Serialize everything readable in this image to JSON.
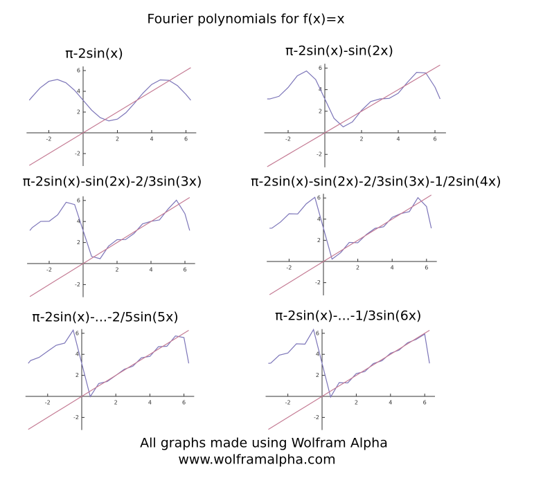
{
  "title": "Fourier polynomials for f(x)=x",
  "footer": [
    "All graphs made using Wolfram Alpha",
    "www.wolframalpha.com"
  ],
  "chart_data": [
    {
      "type": "line",
      "title": "π-2sin(x)",
      "x": [
        -3.14,
        -3,
        -2.5,
        -2,
        -1.5,
        -1,
        -0.5,
        0,
        0.5,
        1,
        1.5,
        2,
        2.5,
        3,
        3.5,
        4,
        4.5,
        5,
        5.5,
        6,
        6.28
      ],
      "series": [
        {
          "color": "#7b74b8",
          "values": [
            3.14,
            3.42,
            4.34,
            4.96,
            5.14,
            4.82,
            4.1,
            3.14,
            2.18,
            1.46,
            1.15,
            1.32,
            1.94,
            2.86,
            3.84,
            4.66,
            5.1,
            5.06,
            4.55,
            3.7,
            3.14
          ]
        },
        {
          "color": "#c47a93",
          "values": [
            -3.14,
            -3,
            -2.5,
            -2,
            -1.5,
            -1,
            -0.5,
            0,
            0.5,
            1,
            1.5,
            2,
            2.5,
            3,
            3.5,
            4,
            4.5,
            5,
            5.5,
            6,
            6.28
          ]
        }
      ],
      "xlim": [
        -3.3,
        6.6
      ],
      "ylim": [
        -3.2,
        6.4
      ],
      "xticks": [
        -2,
        2,
        4,
        6
      ],
      "yticks": [
        -2,
        2,
        4,
        6
      ]
    },
    {
      "type": "line",
      "title": "π-2sin(x)-sin(2x)",
      "x": [
        -3.14,
        -3,
        -2.5,
        -2,
        -1.5,
        -1,
        -0.5,
        0,
        0.5,
        1,
        1.5,
        2,
        2.5,
        3,
        3.5,
        4,
        4.5,
        5,
        5.5,
        6,
        6.28
      ],
      "series": [
        {
          "color": "#7b74b8",
          "values": [
            3.14,
            3.14,
            3.38,
            4.2,
            5.28,
            5.73,
            4.94,
            3.14,
            1.34,
            0.55,
            1.01,
            2.08,
            2.9,
            3.14,
            3.19,
            3.67,
            4.68,
            5.6,
            5.55,
            4.24,
            3.14
          ]
        },
        {
          "color": "#c47a93",
          "values": [
            -3.14,
            -3,
            -2.5,
            -2,
            -1.5,
            -1,
            -0.5,
            0,
            0.5,
            1,
            1.5,
            2,
            2.5,
            3,
            3.5,
            4,
            4.5,
            5,
            5.5,
            6,
            6.28
          ]
        }
      ],
      "xlim": [
        -3.3,
        6.6
      ],
      "ylim": [
        -3.2,
        6.4
      ],
      "xticks": [
        -2,
        2,
        4,
        6
      ],
      "yticks": [
        -2,
        2,
        4,
        6
      ]
    },
    {
      "type": "line",
      "title": "π-2sin(x)-sin(2x)-2/3sin(3x)",
      "x": [
        -3.14,
        -3,
        -2.5,
        -2,
        -1.5,
        -1,
        -0.5,
        0,
        0.5,
        1,
        1.5,
        2,
        2.5,
        3,
        3.5,
        4,
        4.5,
        5,
        5.5,
        6,
        6.28
      ],
      "series": [
        {
          "color": "#7b74b8",
          "values": [
            3.14,
            3.42,
            4.01,
            4.02,
            4.63,
            5.83,
            5.61,
            3.14,
            0.68,
            0.46,
            1.66,
            2.27,
            2.28,
            2.86,
            3.77,
            4.02,
            4.15,
            5.17,
            6.03,
            4.74,
            3.14
          ]
        },
        {
          "color": "#c47a93",
          "values": [
            -3.14,
            -3,
            -2.5,
            -2,
            -1.5,
            -1,
            -0.5,
            0,
            0.5,
            1,
            1.5,
            2,
            2.5,
            3,
            3.5,
            4,
            4.5,
            5,
            5.5,
            6,
            6.28
          ]
        }
      ],
      "xlim": [
        -3.3,
        6.6
      ],
      "ylim": [
        -3.2,
        6.4
      ],
      "xticks": [
        -2,
        2,
        4,
        6
      ],
      "yticks": [
        -2,
        2,
        4,
        6
      ]
    },
    {
      "type": "line",
      "title": "π-2sin(x)-sin(2x)-2/3sin(3x)-1/2sin(4x)",
      "x": [
        -3.14,
        -3,
        -2.5,
        -2,
        -1.5,
        -1,
        -0.5,
        0,
        0.5,
        1,
        1.5,
        2,
        2.5,
        3,
        3.5,
        4,
        4.5,
        5,
        5.5,
        6,
        6.28
      ],
      "series": [
        {
          "color": "#7b74b8",
          "values": [
            3.14,
            3.15,
            3.73,
            4.51,
            4.49,
            5.45,
            6.06,
            3.14,
            0.22,
            0.83,
            1.8,
            1.77,
            2.55,
            3.13,
            3.28,
            4.17,
            4.52,
            4.71,
            6.03,
            5.19,
            3.14
          ]
        },
        {
          "color": "#c47a93",
          "values": [
            -3.14,
            -3,
            -2.5,
            -2,
            -1.5,
            -1,
            -0.5,
            0,
            0.5,
            1,
            1.5,
            2,
            2.5,
            3,
            3.5,
            4,
            4.5,
            5,
            5.5,
            6,
            6.28
          ]
        }
      ],
      "xlim": [
        -3.3,
        6.6
      ],
      "ylim": [
        -3.2,
        6.4
      ],
      "xticks": [
        -2,
        2,
        4,
        6
      ],
      "yticks": [
        -2,
        2,
        4,
        6
      ]
    },
    {
      "type": "line",
      "title": "π-2sin(x)-...-2/5sin(5x)",
      "x": [
        -3.14,
        -3,
        -2.5,
        -2,
        -1.5,
        -1,
        -0.5,
        0,
        0.5,
        1,
        1.5,
        2,
        2.5,
        3,
        3.5,
        4,
        4.5,
        5,
        5.5,
        6,
        6.28
      ],
      "series": [
        {
          "color": "#7b74b8",
          "values": [
            3.14,
            3.41,
            3.71,
            4.29,
            4.86,
            5.07,
            6.3,
            3.14,
            -0.02,
            1.22,
            1.42,
            1.99,
            2.58,
            2.87,
            3.67,
            3.8,
            4.72,
            4.77,
            5.75,
            5.59,
            3.14
          ]
        },
        {
          "color": "#c47a93",
          "values": [
            -3.14,
            -3,
            -2.5,
            -2,
            -1.5,
            -1,
            -0.5,
            0,
            0.5,
            1,
            1.5,
            2,
            2.5,
            3,
            3.5,
            4,
            4.5,
            5,
            5.5,
            6,
            6.28
          ]
        }
      ],
      "xlim": [
        -3.3,
        6.6
      ],
      "ylim": [
        -3.2,
        6.4
      ],
      "xticks": [
        -2,
        2,
        4,
        6
      ],
      "yticks": [
        -2,
        2,
        4,
        6
      ]
    },
    {
      "type": "line",
      "title": "π-2sin(x)-...-1/3sin(6x)",
      "x": [
        -3.14,
        -3,
        -2.5,
        -2,
        -1.5,
        -1,
        -0.5,
        0,
        0.5,
        1,
        1.5,
        2,
        2.5,
        3,
        3.5,
        4,
        4.5,
        5,
        5.5,
        6,
        6.28
      ],
      "series": [
        {
          "color": "#7b74b8",
          "values": [
            3.14,
            3.16,
            3.92,
            4.12,
            5.0,
            4.97,
            6.35,
            3.14,
            -0.06,
            1.31,
            1.28,
            2.17,
            2.36,
            3.12,
            3.39,
            4.1,
            4.4,
            5.1,
            5.42,
            5.92,
            3.14
          ]
        },
        {
          "color": "#c47a93",
          "values": [
            -3.14,
            -3,
            -2.5,
            -2,
            -1.5,
            -1,
            -0.5,
            0,
            0.5,
            1,
            1.5,
            2,
            2.5,
            3,
            3.5,
            4,
            4.5,
            5,
            5.5,
            6,
            6.28
          ]
        }
      ],
      "xlim": [
        -3.3,
        6.6
      ],
      "ylim": [
        -3.2,
        6.4
      ],
      "xticks": [
        -2,
        2,
        4,
        6
      ],
      "yticks": [
        -2,
        2,
        4,
        6
      ]
    }
  ]
}
